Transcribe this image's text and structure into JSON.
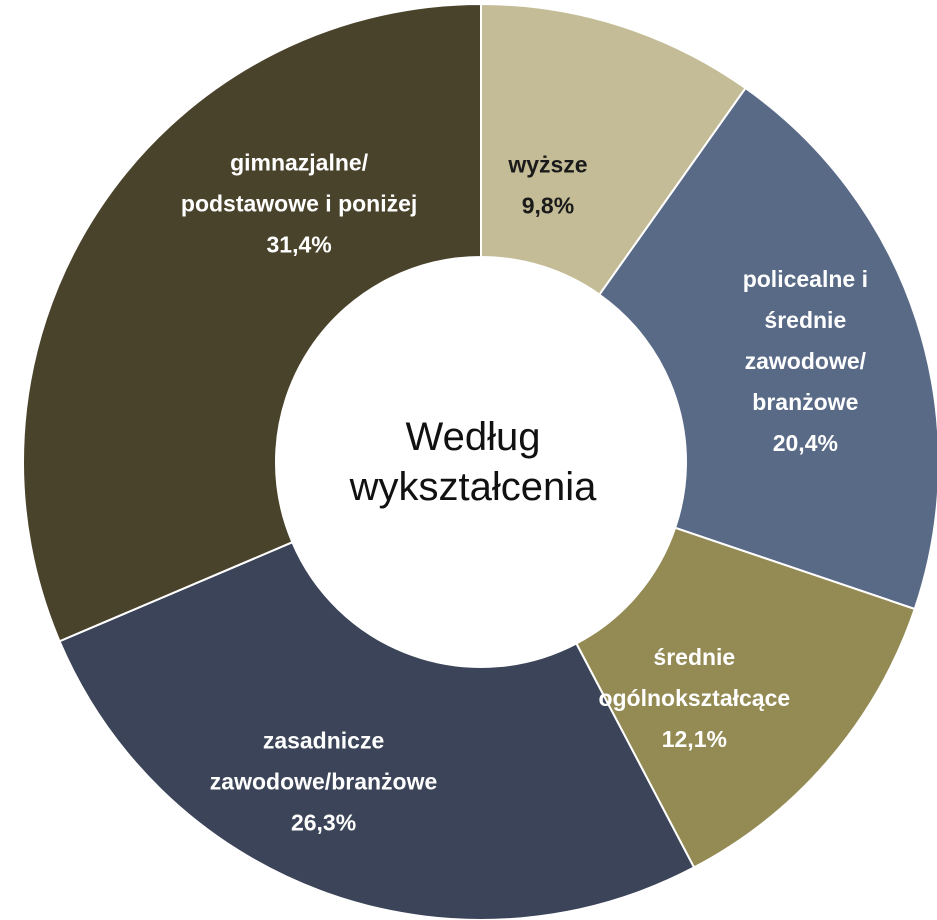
{
  "chart_data": {
    "type": "donut",
    "center_label": "Według\nwykształcenia",
    "categories": [
      "wyższe",
      "policealne i\nśrednie\nzawodowe/\nbranżowe",
      "średnie\nogólnokształcące",
      "zasadnicze\nzawodowe/branżowe",
      "gimnazjalne/\npodstawowe i poniżej"
    ],
    "values": [
      9.8,
      20.4,
      12.1,
      26.3,
      31.4
    ],
    "value_labels": [
      "9,8%",
      "20,4%",
      "12,1%",
      "26,3%",
      "31,4%"
    ],
    "colors": [
      "#c4bc96",
      "#596a87",
      "#948a54",
      "#3b4458",
      "#4a432c"
    ]
  }
}
